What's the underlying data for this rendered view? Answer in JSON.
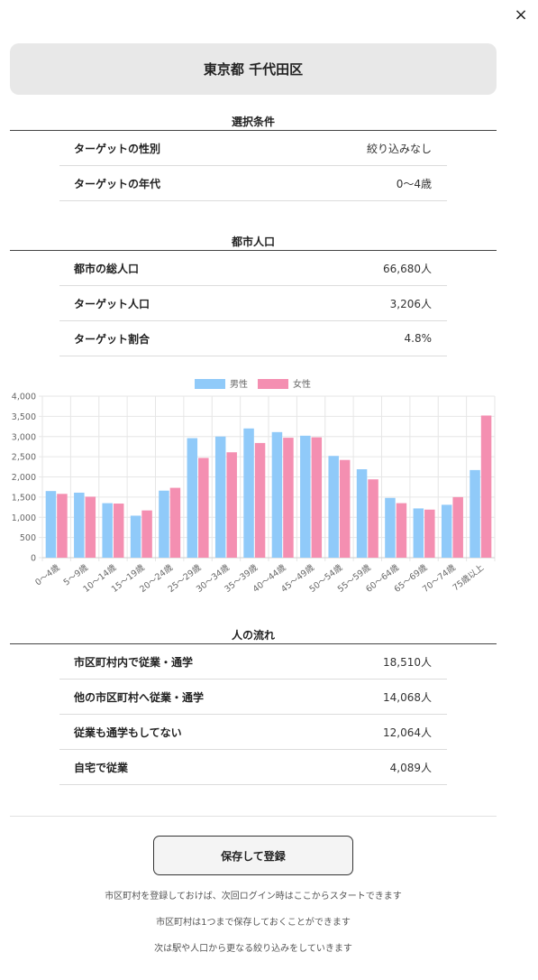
{
  "close_label": "×",
  "title": "東京都 千代田区",
  "sections": {
    "conditions": {
      "heading": "選択条件",
      "rows": [
        {
          "label": "ターゲットの性別",
          "value": "絞り込みなし"
        },
        {
          "label": "ターゲットの年代",
          "value": "0〜4歳"
        }
      ]
    },
    "population": {
      "heading": "都市人口",
      "rows": [
        {
          "label": "都市の総人口",
          "value": "66,680人"
        },
        {
          "label": "ターゲット人口",
          "value": "3,206人"
        },
        {
          "label": "ターゲット割合",
          "value": "4.8%"
        }
      ]
    },
    "flow": {
      "heading": "人の流れ",
      "rows": [
        {
          "label": "市区町村内で従業・通学",
          "value": "18,510人"
        },
        {
          "label": "他の市区町村へ従業・通学",
          "value": "14,068人"
        },
        {
          "label": "従業も通学もしてない",
          "value": "12,064人"
        },
        {
          "label": "自宅で従業",
          "value": "4,089人"
        }
      ]
    }
  },
  "chart_data": {
    "type": "bar",
    "categories": [
      "0〜4歳",
      "5〜9歳",
      "10〜14歳",
      "15〜19歳",
      "20〜24歳",
      "25〜29歳",
      "30〜34歳",
      "35〜39歳",
      "40〜44歳",
      "45〜49歳",
      "50〜54歳",
      "55〜59歳",
      "60〜64歳",
      "65〜69歳",
      "70〜74歳",
      "75歳以上"
    ],
    "series": [
      {
        "name": "男性",
        "color": "#90caf9",
        "values": [
          1650,
          1610,
          1350,
          1040,
          1660,
          2960,
          3000,
          3200,
          3110,
          3020,
          2520,
          2190,
          1480,
          1220,
          1310,
          2170
        ]
      },
      {
        "name": "女性",
        "color": "#f48fb1",
        "values": [
          1580,
          1510,
          1340,
          1170,
          1730,
          2470,
          2610,
          2840,
          2970,
          2980,
          2420,
          1940,
          1350,
          1190,
          1500,
          3520
        ]
      }
    ],
    "yticks": [
      "0",
      "500",
      "1,000",
      "1,500",
      "2,000",
      "2,500",
      "3,000",
      "3,500",
      "4,000"
    ],
    "ylim": [
      0,
      4000
    ],
    "legend": "top-center",
    "grid": true
  },
  "footer": {
    "save_label": "保存して登録",
    "notes": [
      "市区町村を登録しておけば、次回ログイン時はここからスタートできます",
      "市区町村は1つまで保存しておくことができます",
      "次は駅や人口から更なる絞り込みをしていきます"
    ]
  }
}
